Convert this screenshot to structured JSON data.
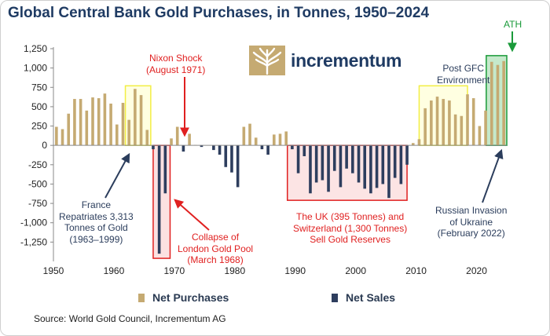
{
  "title": "Global Central Bank Gold Purchases, in Tonnes, 1950–2024",
  "logo_text": "incrementum",
  "source": "Source: World Gold Council, Incrementum AG",
  "legend": {
    "net_purchases": "Net Purchases",
    "net_sales": "Net Sales"
  },
  "colors": {
    "title": "#1f3b63",
    "purchases": "#c5aa72",
    "sales": "#2e3e5e",
    "red": "#e02020",
    "yellow_box": "#f2ee44",
    "green_box": "#1a9a3a"
  },
  "annotations": {
    "nixon": [
      "Nixon Shock",
      "(August 1971)"
    ],
    "france": [
      "France",
      "Repatriates 3,313",
      "Tonnes of Gold",
      "(1963–1999)"
    ],
    "pool": [
      "Collapse of",
      "London Gold Pool",
      "(March 1968)"
    ],
    "uk": [
      "The UK (395 Tonnes) and",
      "Switzerland (1,300 Tonnes)",
      "Sell Gold Reserves"
    ],
    "gfc": [
      "Post GFC",
      "Environment"
    ],
    "russia": [
      "Russian Invasion",
      "of Ukraine",
      "(February 2022)"
    ],
    "ath": [
      "ATH"
    ]
  },
  "chart_data": {
    "type": "bar",
    "title": "Global Central Bank Gold Purchases, in Tonnes, 1950–2024",
    "xlabel": "",
    "ylabel": "",
    "xlim": [
      1950,
      2025
    ],
    "ylim": [
      -1500,
      1250
    ],
    "x_ticks": [
      1950,
      1960,
      1970,
      1980,
      1990,
      2000,
      2010,
      2020
    ],
    "y_ticks": [
      1250,
      1000,
      750,
      500,
      250,
      0,
      -250,
      -500,
      -750,
      -1000,
      -1250
    ],
    "y_tick_labels": [
      "1,250",
      "1,000",
      "750",
      "500",
      "250",
      "0",
      "-250",
      "-500",
      "-750",
      "-1,000",
      "-1,250"
    ],
    "series": [
      {
        "name": "Net Purchases / Net Sales",
        "years": [
          1950,
          1951,
          1952,
          1953,
          1954,
          1955,
          1956,
          1957,
          1958,
          1959,
          1960,
          1961,
          1962,
          1963,
          1964,
          1965,
          1966,
          1967,
          1968,
          1969,
          1970,
          1971,
          1972,
          1973,
          1974,
          1975,
          1976,
          1977,
          1978,
          1979,
          1980,
          1981,
          1982,
          1983,
          1984,
          1985,
          1986,
          1987,
          1988,
          1989,
          1990,
          1991,
          1992,
          1993,
          1994,
          1995,
          1996,
          1997,
          1998,
          1999,
          2000,
          2001,
          2002,
          2003,
          2004,
          2005,
          2006,
          2007,
          2008,
          2009,
          2010,
          2011,
          2012,
          2013,
          2014,
          2015,
          2016,
          2017,
          2018,
          2019,
          2020,
          2021,
          2022,
          2023,
          2024
        ],
        "values": [
          240,
          210,
          410,
          600,
          600,
          450,
          620,
          610,
          670,
          540,
          270,
          550,
          330,
          730,
          650,
          200,
          -50,
          -1400,
          -620,
          90,
          240,
          -80,
          150,
          5,
          -20,
          0,
          -60,
          -120,
          -280,
          -350,
          -540,
          240,
          280,
          100,
          -50,
          -120,
          140,
          150,
          180,
          -50,
          -360,
          -140,
          -620,
          -480,
          -450,
          -600,
          -330,
          -540,
          -300,
          -360,
          -480,
          -560,
          -620,
          -550,
          -500,
          -680,
          -420,
          -500,
          -250,
          30,
          80,
          480,
          580,
          630,
          600,
          580,
          400,
          380,
          660,
          610,
          250,
          450,
          1080,
          1040,
          1090
        ]
      }
    ],
    "legend_position": "bottom",
    "grid": false
  }
}
